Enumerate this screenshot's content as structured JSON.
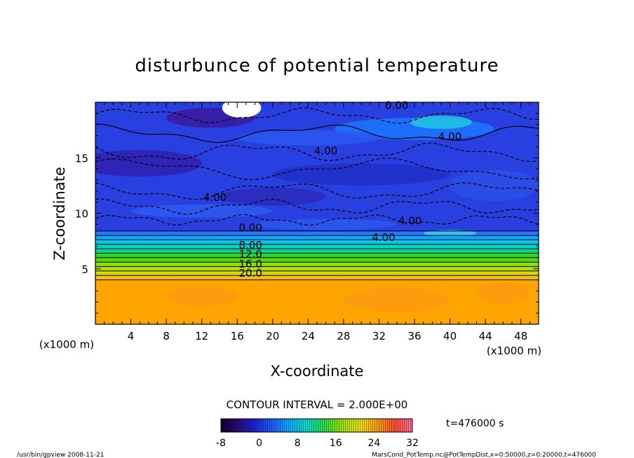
{
  "chart_data": {
    "type": "heatmap",
    "title": "disturbunce of potential temperature",
    "xlabel": "X-coordinate",
    "ylabel": "Z-coordinate",
    "x_unit": "(x1000 m)",
    "y_unit": "(x1000 m)",
    "xlim": [
      0,
      50
    ],
    "ylim": [
      0,
      20
    ],
    "x_ticks": [
      "4",
      "8",
      "12",
      "16",
      "20",
      "24",
      "28",
      "32",
      "36",
      "40",
      "44",
      "48"
    ],
    "y_ticks": [
      "5",
      "10",
      "15"
    ],
    "contour_interval_label": "CONTOUR INTERVAL = 2.000E+00",
    "contour_labels": [
      {
        "text": "0.00",
        "x": 34,
        "z": 19.4
      },
      {
        "text": "4.00",
        "x": 40,
        "z": 16.6
      },
      {
        "text": "4.00",
        "x": 26,
        "z": 15.3
      },
      {
        "text": "4.00",
        "x": 13.5,
        "z": 11.1
      },
      {
        "text": "4.00",
        "x": 35.5,
        "z": 9.0
      },
      {
        "text": "0.00",
        "x": 17.5,
        "z": 8.4
      },
      {
        "text": "4.00",
        "x": 32.5,
        "z": 7.5
      },
      {
        "text": "8.00",
        "x": 17.5,
        "z": 6.8
      },
      {
        "text": "12.0",
        "x": 17.5,
        "z": 6.0
      },
      {
        "text": "16.0",
        "x": 17.5,
        "z": 5.1
      },
      {
        "text": "20.0",
        "x": 17.5,
        "z": 4.3
      }
    ],
    "bands": [
      {
        "z": [
          0,
          4.0
        ],
        "value": 27,
        "color": "#ffa500"
      },
      {
        "z": [
          4.0,
          4.4
        ],
        "value": 23,
        "color": "#f5c000"
      },
      {
        "z": [
          4.4,
          4.8
        ],
        "value": 21,
        "color": "#dcd800"
      },
      {
        "z": [
          4.8,
          5.2
        ],
        "value": 19,
        "color": "#b4e000"
      },
      {
        "z": [
          5.2,
          5.6
        ],
        "value": 17,
        "color": "#8ce000"
      },
      {
        "z": [
          5.6,
          6.0
        ],
        "value": 15,
        "color": "#5ad800"
      },
      {
        "z": [
          6.0,
          6.4
        ],
        "value": 13,
        "color": "#2ad830"
      },
      {
        "z": [
          6.4,
          6.8
        ],
        "value": 11,
        "color": "#00d890"
      },
      {
        "z": [
          6.8,
          7.2
        ],
        "value": 9,
        "color": "#00d8c8"
      },
      {
        "z": [
          7.2,
          7.6
        ],
        "value": 7,
        "color": "#00c8f0"
      },
      {
        "z": [
          7.6,
          8.0
        ],
        "value": 5,
        "color": "#00a8ff"
      },
      {
        "z": [
          8.0,
          8.4
        ],
        "value": 2,
        "color": "#2878ff"
      },
      {
        "z": [
          8.4,
          20
        ],
        "value": -3,
        "color": "#2840e0"
      }
    ],
    "colorbar": {
      "range": [
        -8,
        32
      ],
      "tick_labels": [
        "-8",
        "0",
        "8",
        "16",
        "24",
        "32"
      ],
      "stops": [
        "#100030",
        "#2a0a80",
        "#1a28e0",
        "#1e64ff",
        "#00b4ff",
        "#00e0c8",
        "#30e040",
        "#a0e800",
        "#f0e000",
        "#ffa000",
        "#ff5030",
        "#ff70a0"
      ]
    },
    "time_label": "t=476000 s",
    "footer_left": "/usr/bin/gpview  2008-11-21",
    "footer_right": "MarsCond_PotTemp.nc@PotTempDist,x=0:50000,z=0:20000,t=476000"
  }
}
